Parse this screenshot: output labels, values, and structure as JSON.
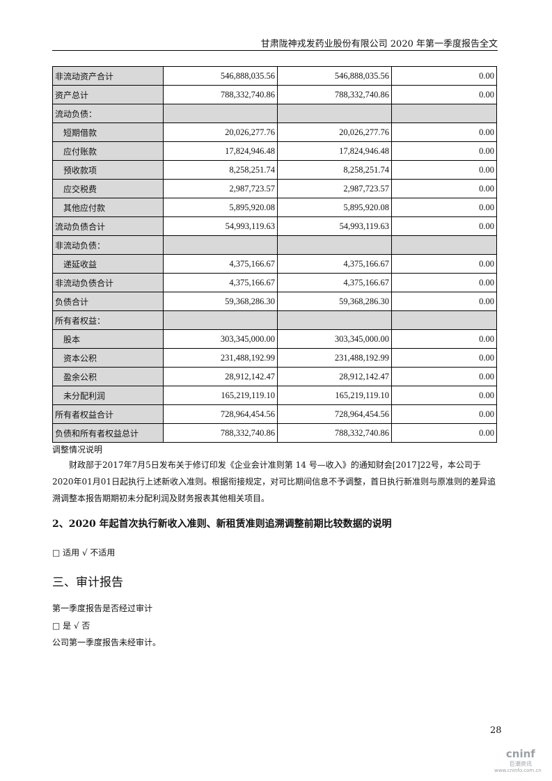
{
  "header": {
    "title": "甘肃陇神戎发药业股份有限公司 2020 年第一季度报告全文"
  },
  "table": {
    "rows": [
      {
        "label": "非流动资产合计",
        "v1": "546,888,035.56",
        "v2": "546,888,035.56",
        "v3": "0.00",
        "indent": false,
        "section": false
      },
      {
        "label": "资产总计",
        "v1": "788,332,740.86",
        "v2": "788,332,740.86",
        "v3": "0.00",
        "indent": false,
        "section": false
      },
      {
        "label": "流动负债：",
        "v1": "",
        "v2": "",
        "v3": "",
        "indent": false,
        "section": true
      },
      {
        "label": "短期借款",
        "v1": "20,026,277.76",
        "v2": "20,026,277.76",
        "v3": "0.00",
        "indent": true,
        "section": false
      },
      {
        "label": "应付账款",
        "v1": "17,824,946.48",
        "v2": "17,824,946.48",
        "v3": "0.00",
        "indent": true,
        "section": false
      },
      {
        "label": "预收款项",
        "v1": "8,258,251.74",
        "v2": "8,258,251.74",
        "v3": "0.00",
        "indent": true,
        "section": false
      },
      {
        "label": "应交税费",
        "v1": "2,987,723.57",
        "v2": "2,987,723.57",
        "v3": "0.00",
        "indent": true,
        "section": false
      },
      {
        "label": "其他应付款",
        "v1": "5,895,920.08",
        "v2": "5,895,920.08",
        "v3": "0.00",
        "indent": true,
        "section": false
      },
      {
        "label": "流动负债合计",
        "v1": "54,993,119.63",
        "v2": "54,993,119.63",
        "v3": "0.00",
        "indent": false,
        "section": false
      },
      {
        "label": "非流动负债：",
        "v1": "",
        "v2": "",
        "v3": "",
        "indent": false,
        "section": true
      },
      {
        "label": "递延收益",
        "v1": "4,375,166.67",
        "v2": "4,375,166.67",
        "v3": "0.00",
        "indent": true,
        "section": false
      },
      {
        "label": "非流动负债合计",
        "v1": "4,375,166.67",
        "v2": "4,375,166.67",
        "v3": "0.00",
        "indent": false,
        "section": false
      },
      {
        "label": "负债合计",
        "v1": "59,368,286.30",
        "v2": "59,368,286.30",
        "v3": "0.00",
        "indent": false,
        "section": false
      },
      {
        "label": "所有者权益：",
        "v1": "",
        "v2": "",
        "v3": "",
        "indent": false,
        "section": true
      },
      {
        "label": "股本",
        "v1": "303,345,000.00",
        "v2": "303,345,000.00",
        "v3": "0.00",
        "indent": true,
        "section": false
      },
      {
        "label": "资本公积",
        "v1": "231,488,192.99",
        "v2": "231,488,192.99",
        "v3": "0.00",
        "indent": true,
        "section": false
      },
      {
        "label": "盈余公积",
        "v1": "28,912,142.47",
        "v2": "28,912,142.47",
        "v3": "0.00",
        "indent": true,
        "section": false
      },
      {
        "label": "未分配利润",
        "v1": "165,219,119.10",
        "v2": "165,219,119.10",
        "v3": "0.00",
        "indent": true,
        "section": false
      },
      {
        "label": "所有者权益合计",
        "v1": "728,964,454.56",
        "v2": "728,964,454.56",
        "v3": "0.00",
        "indent": false,
        "section": false
      },
      {
        "label": "负债和所有者权益总计",
        "v1": "788,332,740.86",
        "v2": "788,332,740.86",
        "v3": "0.00",
        "indent": false,
        "section": false
      }
    ]
  },
  "adjust_title": "调整情况说明",
  "adjust_text": "财政部于2017年7月5日发布关于修订印发《企业会计准则第 14 号—收入》的通知财会[2017]22号，本公司于2020年01月01日起执行上述新收入准则。根据衔接规定，对可比期间信息不予调整，首日执行新准则与原准则的差异追溯调整本报告期期初未分配利润及财务报表其他相关项目。",
  "section2_title": "2、2020 年起首次执行新收入准则、新租赁准则追溯调整前期比较数据的说明",
  "section2_options": "□ 适用 √ 不适用",
  "section3_title": "三、审计报告",
  "audit_question": "第一季度报告是否经过审计",
  "audit_options": "□ 是 √ 否",
  "audit_text": "公司第一季度报告未经审计。",
  "page_number": "28",
  "watermark": {
    "brand": "cninf",
    "cn": "巨潮资讯",
    "url": "www.cninfo.com.cn"
  }
}
